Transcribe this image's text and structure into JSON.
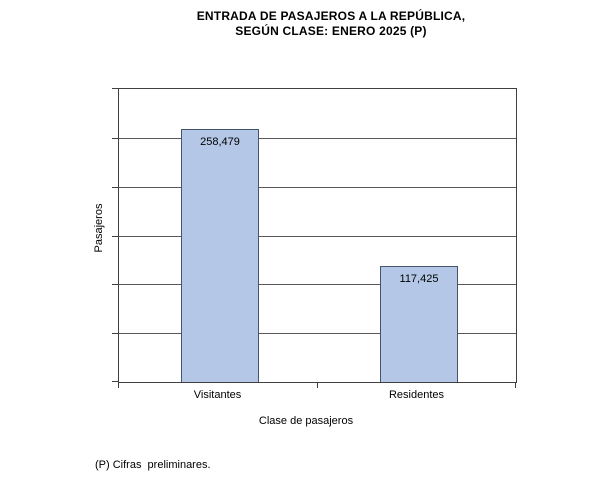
{
  "title": {
    "line1": "ENTRADA DE PASAJEROS A LA REPÚBLICA,",
    "line2": "SEGÚN CLASE: ENERO 2025 (P)"
  },
  "footnote": "(P) Cifras  preliminares.",
  "chart_data": {
    "type": "bar",
    "title": "ENTRADA DE PASAJEROS A LA REPÚBLICA, SEGÚN CLASE: ENERO 2025 (P)",
    "categories": [
      "Visitantes",
      "Residentes"
    ],
    "values": [
      258479,
      117425
    ],
    "value_labels": [
      "258,479",
      "117,425"
    ],
    "xlabel": "Clase de pasajeros",
    "ylabel": "Pasajeros",
    "ylim": [
      0,
      300000
    ],
    "gridline_interval": 50000,
    "y_tick_labels_visible": false,
    "grid": "horizontal major gridlines",
    "legend": "none",
    "data_label_position": "inside-end",
    "colors": {
      "bar_fill": "#B4C7E7",
      "bar_border": "#44546A",
      "gridline": "#595959",
      "axis": "#404040",
      "text": "#000000",
      "background": "#FFFFFF"
    }
  }
}
